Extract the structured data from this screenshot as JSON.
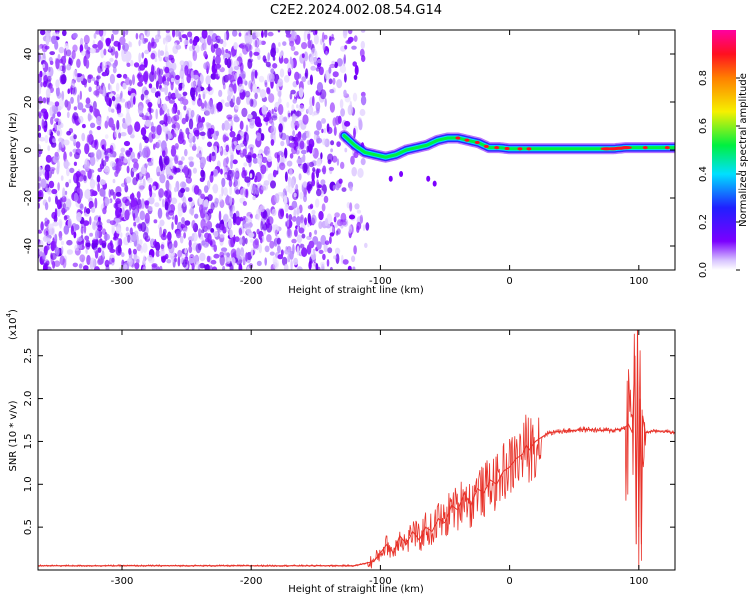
{
  "title": "C2E2.2024.002.08.54.G14",
  "chart_data": [
    {
      "type": "heatmap",
      "xlabel": "Height of straight line (km)",
      "ylabel": "Frequency (Hz)",
      "xlim": [
        -365,
        128
      ],
      "ylim": [
        -50,
        50
      ],
      "x_ticks": [
        -300,
        -200,
        -100,
        0,
        100
      ],
      "y_ticks": [
        -40,
        -20,
        0,
        20,
        40
      ],
      "colorbar": {
        "label": "Normalized spectral amplitude",
        "range": [
          0,
          1
        ],
        "ticks": [
          0.0,
          0.2,
          0.4,
          0.6,
          0.8
        ],
        "colormap": "rainbow: white-purple-blue-cyan-green-yellow-orange-red-magenta"
      },
      "noise_region_x": [
        -365,
        -110
      ],
      "signal_trace": {
        "x": [
          -128,
          -120,
          -112,
          -104,
          -96,
          -88,
          -80,
          -72,
          -64,
          -56,
          -48,
          -40,
          -32,
          -24,
          -16,
          -8,
          0,
          10,
          20,
          40,
          60,
          80,
          90,
          95,
          100,
          110,
          128
        ],
        "freq": [
          6,
          2,
          -1,
          -2,
          -3,
          -2,
          0,
          1,
          2,
          4,
          5,
          5,
          4,
          3,
          1,
          1,
          0.5,
          0.5,
          0.5,
          0.5,
          0.5,
          0.5,
          1,
          1,
          1,
          1,
          1
        ]
      }
    },
    {
      "type": "line",
      "xlabel": "Height of straight line (km)",
      "ylabel": "SNR (10 * v/v)",
      "y_multiplier_label": "(x10",
      "y_multiplier_exp": "4",
      "xlim": [
        -365,
        128
      ],
      "ylim": [
        0,
        2.8
      ],
      "x_ticks": [
        -300,
        -200,
        -100,
        0,
        100
      ],
      "y_ticks": [
        0.5,
        1.0,
        1.5,
        2.0,
        2.5
      ],
      "series": [
        {
          "color": "#e8332a",
          "x": [
            -365,
            -300,
            -200,
            -120,
            -105,
            -95,
            -90,
            -85,
            -80,
            -75,
            -70,
            -65,
            -60,
            -55,
            -50,
            -45,
            -40,
            -35,
            -30,
            -25,
            -20,
            -15,
            -10,
            -5,
            0,
            5,
            10,
            13,
            15,
            20,
            25,
            30,
            40,
            50,
            60,
            70,
            80,
            88,
            92,
            95,
            97,
            98,
            99,
            100,
            101,
            102,
            103,
            105,
            110,
            120,
            128
          ],
          "y": [
            0.05,
            0.05,
            0.05,
            0.05,
            0.1,
            0.3,
            0.2,
            0.4,
            0.3,
            0.45,
            0.35,
            0.5,
            0.45,
            0.6,
            0.55,
            0.75,
            0.7,
            0.9,
            0.75,
            0.95,
            0.9,
            1.05,
            1.0,
            1.15,
            1.2,
            1.3,
            1.35,
            1.45,
            1.4,
            1.5,
            1.55,
            1.6,
            1.62,
            1.63,
            1.64,
            1.63,
            1.63,
            1.65,
            1.7,
            1.6,
            2.5,
            0.3,
            2.8,
            0.5,
            2.0,
            0.3,
            1.8,
            1.6,
            1.62,
            1.62,
            1.6
          ]
        }
      ]
    }
  ]
}
